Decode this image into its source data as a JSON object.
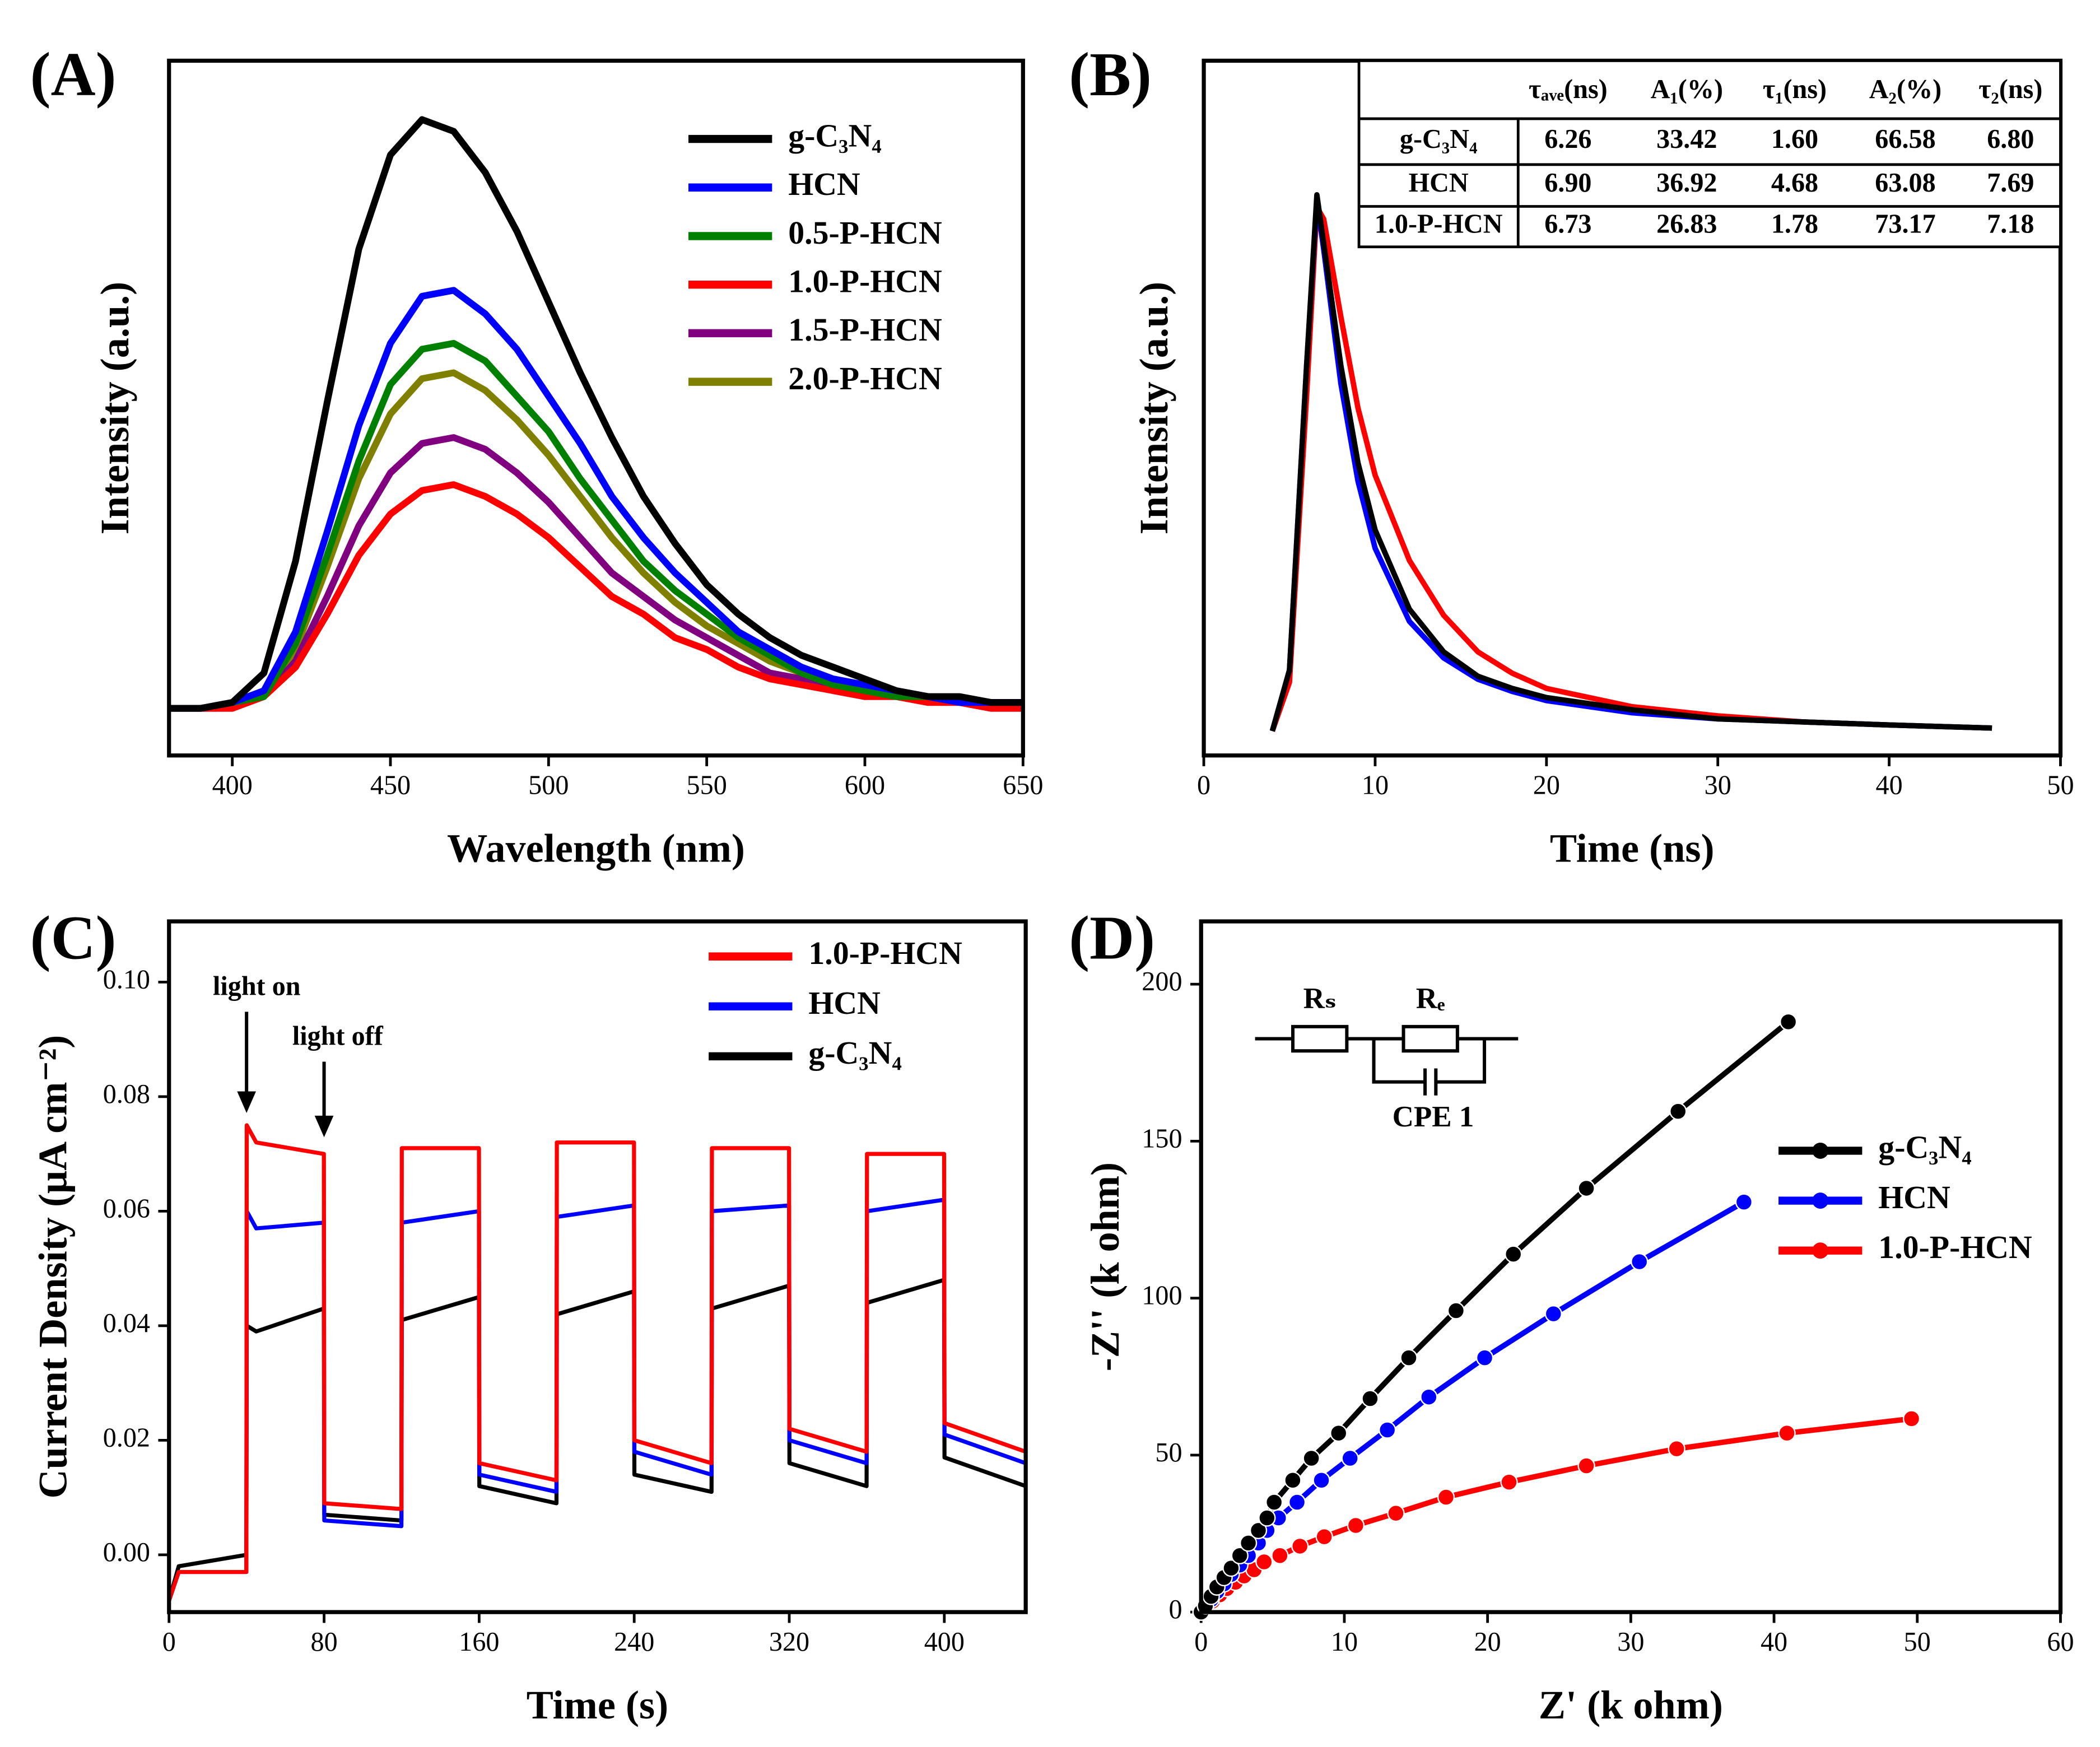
{
  "chart_data": [
    {
      "type": "line",
      "panel_label": "(A)",
      "xlabel": "Wavelength (nm)",
      "ylabel": "Intensity (a.u.)",
      "xlim": [
        380,
        650
      ],
      "xticks": [
        400,
        450,
        500,
        550,
        600,
        650
      ],
      "ylim": [
        -0.08,
        1.1
      ],
      "x": [
        380,
        390,
        400,
        410,
        420,
        430,
        440,
        450,
        460,
        470,
        480,
        490,
        500,
        510,
        520,
        530,
        540,
        550,
        560,
        570,
        580,
        590,
        600,
        610,
        620,
        630,
        640,
        650
      ],
      "series": [
        {
          "name": "g-C₃N₄",
          "color": "#000000",
          "values": [
            0,
            0,
            0.01,
            0.06,
            0.25,
            0.52,
            0.78,
            0.94,
            1.0,
            0.98,
            0.91,
            0.81,
            0.69,
            0.57,
            0.46,
            0.36,
            0.28,
            0.21,
            0.16,
            0.12,
            0.09,
            0.07,
            0.05,
            0.03,
            0.02,
            0.02,
            0.01,
            0.01
          ]
        },
        {
          "name": "HCN",
          "color": "#0000ff",
          "values": [
            0,
            0,
            0.01,
            0.03,
            0.13,
            0.3,
            0.48,
            0.62,
            0.7,
            0.71,
            0.67,
            0.61,
            0.53,
            0.45,
            0.36,
            0.29,
            0.23,
            0.18,
            0.13,
            0.1,
            0.07,
            0.05,
            0.04,
            0.03,
            0.02,
            0.01,
            0.01,
            0.01
          ]
        },
        {
          "name": "0.5-P-HCN",
          "color": "#008000",
          "values": [
            0,
            0,
            0.01,
            0.02,
            0.11,
            0.26,
            0.42,
            0.55,
            0.61,
            0.62,
            0.59,
            0.53,
            0.47,
            0.39,
            0.32,
            0.25,
            0.2,
            0.16,
            0.12,
            0.09,
            0.06,
            0.04,
            0.03,
            0.02,
            0.02,
            0.01,
            0.01,
            0.01
          ]
        },
        {
          "name": "1.0-P-HCN",
          "color": "#ff0000",
          "values": [
            0,
            0,
            0,
            0.02,
            0.07,
            0.16,
            0.26,
            0.33,
            0.37,
            0.38,
            0.36,
            0.33,
            0.29,
            0.24,
            0.19,
            0.16,
            0.12,
            0.1,
            0.07,
            0.05,
            0.04,
            0.03,
            0.02,
            0.02,
            0.01,
            0.01,
            0,
            0
          ]
        },
        {
          "name": "1.5-P-HCN",
          "color": "#800080",
          "values": [
            0,
            0,
            0,
            0.02,
            0.08,
            0.19,
            0.31,
            0.4,
            0.45,
            0.46,
            0.44,
            0.4,
            0.35,
            0.29,
            0.23,
            0.19,
            0.15,
            0.12,
            0.09,
            0.06,
            0.05,
            0.03,
            0.02,
            0.02,
            0.01,
            0.01,
            0,
            0
          ]
        },
        {
          "name": "2.0-P-HCN",
          "color": "#808000",
          "values": [
            0,
            0,
            0.01,
            0.02,
            0.1,
            0.24,
            0.39,
            0.5,
            0.56,
            0.57,
            0.54,
            0.49,
            0.43,
            0.36,
            0.29,
            0.23,
            0.18,
            0.14,
            0.11,
            0.08,
            0.06,
            0.04,
            0.03,
            0.02,
            0.02,
            0.01,
            0.01,
            0.01
          ]
        }
      ]
    },
    {
      "type": "line",
      "panel_label": "(B)",
      "xlabel": "Time (ns)",
      "ylabel": "Intensity (a.u.)",
      "xlim": [
        0,
        50
      ],
      "xticks": [
        0,
        10,
        20,
        30,
        40,
        50
      ],
      "ylim": [
        -0.04,
        1.1
      ],
      "x": [
        4,
        5,
        6,
        6.6,
        7,
        8,
        9,
        10,
        12,
        14,
        16,
        18,
        20,
        25,
        30,
        35,
        40,
        46
      ],
      "series": [
        {
          "name": "g-C₃N₄",
          "color": "#000000",
          "values": [
            0,
            0.1,
            0.6,
            0.88,
            0.8,
            0.6,
            0.44,
            0.33,
            0.2,
            0.13,
            0.09,
            0.07,
            0.055,
            0.035,
            0.02,
            0.015,
            0.01,
            0.005
          ]
        },
        {
          "name": "HCN",
          "color": "#0000ff",
          "values": [
            0,
            0.1,
            0.6,
            0.87,
            0.79,
            0.57,
            0.41,
            0.3,
            0.18,
            0.12,
            0.085,
            0.065,
            0.05,
            0.03,
            0.02,
            0.015,
            0.01,
            0.005
          ]
        },
        {
          "name": "1.0-P-HCN",
          "color": "#ff0000",
          "values": [
            0,
            0.08,
            0.55,
            0.86,
            0.84,
            0.68,
            0.53,
            0.42,
            0.28,
            0.19,
            0.13,
            0.095,
            0.07,
            0.04,
            0.025,
            0.015,
            0.01,
            0.005
          ]
        }
      ],
      "table": {
        "columns": [
          "τₐᵥₑ(ns)",
          "A₁(%)",
          "τ₁(ns)",
          "A₂(%)",
          "τ₂(ns)"
        ],
        "rows": [
          {
            "label": "g-C₃N₄",
            "color": "#000000",
            "values": [
              "6.26",
              "33.42",
              "1.60",
              "66.58",
              "6.80"
            ]
          },
          {
            "label": "HCN",
            "color": "#0000ff",
            "values": [
              "6.90",
              "36.92",
              "4.68",
              "63.08",
              "7.69"
            ]
          },
          {
            "label": "1.0-P-HCN",
            "color": "#ff0000",
            "values": [
              "6.73",
              "26.83",
              "1.78",
              "73.17",
              "7.18"
            ]
          }
        ]
      }
    },
    {
      "type": "line",
      "panel_label": "(C)",
      "xlabel": "Time (s)",
      "ylabel": "Current Density (μA cm⁻²)",
      "xlim": [
        0,
        442
      ],
      "xticks": [
        0,
        80,
        160,
        240,
        320,
        400
      ],
      "ylim": [
        -0.01,
        0.1106
      ],
      "yticks": [
        {
          "value": 0,
          "label": "0.00"
        },
        0.02,
        0.04,
        0.06,
        0.08,
        {
          "value": 0.1,
          "label": "0.10"
        }
      ],
      "annotations": [
        "light on",
        "light off"
      ],
      "x": [
        0,
        5,
        39.9,
        40.1,
        45,
        79.9,
        80.1,
        119.9,
        120.1,
        159.9,
        160.1,
        199.9,
        200.1,
        239.9,
        240.1,
        279.9,
        280.1,
        319.9,
        320.1,
        359.9,
        360.1,
        399.9,
        400.1,
        442
      ],
      "series": [
        {
          "name": "1.0-P-HCN",
          "color": "#ff0000",
          "values": [
            -0.008,
            -0.003,
            -0.003,
            0.075,
            0.072,
            0.07,
            0.009,
            0.008,
            0.071,
            0.071,
            0.016,
            0.013,
            0.072,
            0.072,
            0.02,
            0.016,
            0.071,
            0.071,
            0.022,
            0.018,
            0.07,
            0.07,
            0.023,
            0.018
          ]
        },
        {
          "name": "HCN",
          "color": "#0000ff",
          "values": [
            -0.008,
            -0.003,
            -0.003,
            0.06,
            0.057,
            0.058,
            0.006,
            0.005,
            0.058,
            0.06,
            0.014,
            0.011,
            0.059,
            0.061,
            0.018,
            0.014,
            0.06,
            0.061,
            0.02,
            0.016,
            0.06,
            0.062,
            0.021,
            0.016
          ]
        },
        {
          "name": "g-C₃N₄",
          "color": "#000000",
          "values": [
            -0.008,
            -0.002,
            0,
            0.04,
            0.039,
            0.043,
            0.007,
            0.006,
            0.041,
            0.045,
            0.012,
            0.009,
            0.042,
            0.046,
            0.014,
            0.011,
            0.043,
            0.047,
            0.016,
            0.012,
            0.044,
            0.048,
            0.017,
            0.012
          ]
        }
      ]
    },
    {
      "type": "line",
      "markers": true,
      "panel_label": "(D)",
      "xlabel": "Z' (k ohm)",
      "ylabel": "-Z'' (k ohm)",
      "xlim": [
        0,
        60
      ],
      "xticks": [
        0,
        10,
        20,
        30,
        40,
        50,
        60
      ],
      "ylim": [
        0,
        220
      ],
      "yticks": [
        0,
        50,
        100,
        150,
        200
      ],
      "circuit_labels": [
        "Rₛ",
        "Rₑ",
        "CPE 1"
      ],
      "series": [
        {
          "name": "g-C₃N₄",
          "color": "#000000",
          "x": [
            0,
            0.3,
            0.7,
            1.1,
            1.6,
            2.1,
            2.7,
            3.3,
            4,
            4.6,
            5.1,
            6.4,
            7.7,
            9.6,
            11.8,
            14.5,
            17.8,
            21.8,
            26.9,
            33.3,
            41
          ],
          "values": [
            0,
            2,
            5,
            8,
            11,
            14,
            18,
            22,
            26,
            30,
            35,
            42,
            49,
            57,
            68,
            81,
            96,
            114,
            135,
            159.5,
            188
          ]
        },
        {
          "name": "HCN",
          "color": "#0000ff",
          "x": [
            0,
            0.3,
            0.7,
            1.1,
            1.6,
            2.1,
            2.7,
            3.3,
            4,
            4.6,
            5.4,
            6.7,
            8.4,
            10.4,
            13,
            15.9,
            19.8,
            24.6,
            30.6,
            37.9
          ],
          "values": [
            0,
            1.5,
            4,
            6.5,
            9,
            12,
            15,
            18,
            22,
            26,
            30,
            35,
            42,
            49,
            58,
            68.5,
            81,
            95,
            111.6,
            130.6
          ]
        },
        {
          "name": "1.0-P-HCN",
          "color": "#ff0000",
          "x": [
            0,
            0.4,
            0.8,
            1.3,
            1.8,
            2.4,
            3,
            3.7,
            4.4,
            5.5,
            6.9,
            8.6,
            10.8,
            13.6,
            17.1,
            21.5,
            26.9,
            33.2,
            40.9,
            49.6
          ],
          "values": [
            0,
            1.5,
            3.5,
            5.5,
            7.5,
            9.5,
            11.5,
            13.5,
            16,
            18,
            21,
            24,
            27.6,
            31.5,
            36.6,
            41.4,
            46.6,
            52,
            57,
            61.6
          ]
        }
      ]
    }
  ]
}
